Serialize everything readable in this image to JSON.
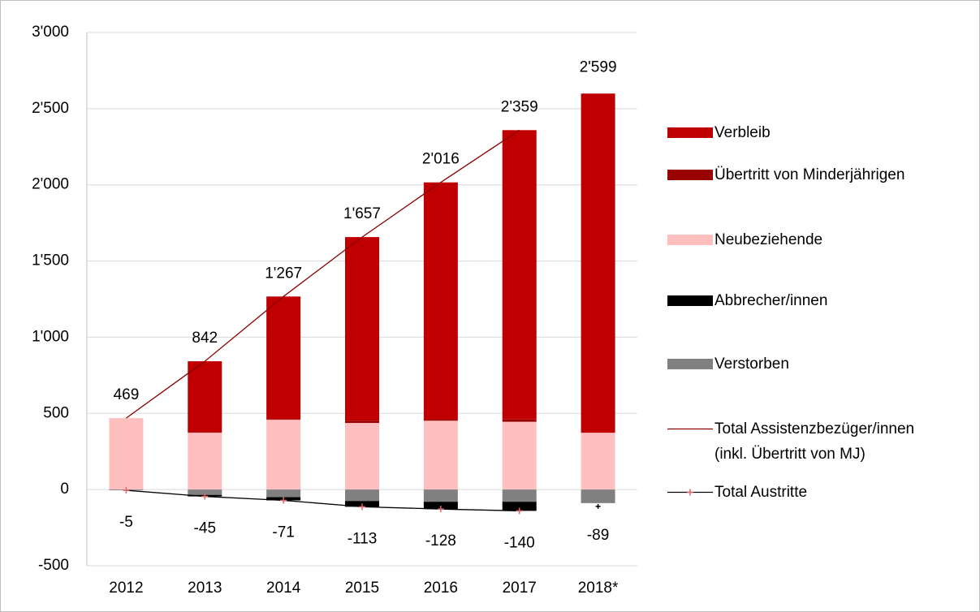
{
  "chart_data": {
    "type": "bar",
    "categories": [
      "2012",
      "2013",
      "2014",
      "2015",
      "2016",
      "2017",
      "2018*"
    ],
    "ylim": [
      -500,
      3000
    ],
    "yticks": [
      {
        "value": 3000,
        "label": "3'000"
      },
      {
        "value": 2500,
        "label": "2'500"
      },
      {
        "value": 2000,
        "label": "2'000"
      },
      {
        "value": 1500,
        "label": "1'500"
      },
      {
        "value": 1000,
        "label": "1'000"
      },
      500,
      0,
      -500
    ],
    "grid": true,
    "series": [
      {
        "name": "Verbleib",
        "kind": "bar",
        "color": "#c00000",
        "values": [
          0,
          464,
          804,
          1205,
          1554,
          1899,
          2226
        ]
      },
      {
        "name": "Übertritt von Minderjährigen",
        "kind": "bar",
        "color": "#990000",
        "values": [
          0,
          5,
          5,
          15,
          10,
          15,
          0
        ]
      },
      {
        "name": "Neubeziehende",
        "kind": "bar",
        "color": "#ffbfbf",
        "values": [
          469,
          373,
          458,
          437,
          452,
          445,
          373
        ]
      },
      {
        "name": "Abbrecher/innen",
        "kind": "bar",
        "color": "#000000",
        "values": [
          0,
          -10,
          -21,
          -38,
          -48,
          -60,
          0
        ]
      },
      {
        "name": "Verstorben",
        "kind": "bar",
        "color": "#808080",
        "values": [
          -5,
          -35,
          -50,
          -75,
          -80,
          -80,
          -89
        ]
      },
      {
        "name": "Total Assistenzbezüger/innen\n(inkl. Übertritt von MJ)",
        "kind": "line",
        "color": "#8b0000",
        "values": [
          469,
          842,
          1267,
          1657,
          2016,
          2359,
          null
        ],
        "value_labels": [
          "469",
          "842",
          "1'267",
          "1'657",
          "2'016",
          "2'359",
          null
        ]
      },
      {
        "name": "Total Austritte",
        "kind": "line",
        "color": "#000000",
        "marker_color": "#e06666",
        "values": [
          -5,
          -45,
          -71,
          -113,
          -128,
          -140,
          null
        ]
      }
    ],
    "annotations": [
      {
        "x": "2018*",
        "value": 2599,
        "label": "2'599"
      },
      {
        "x": "2018*",
        "value": -89
      }
    ]
  }
}
